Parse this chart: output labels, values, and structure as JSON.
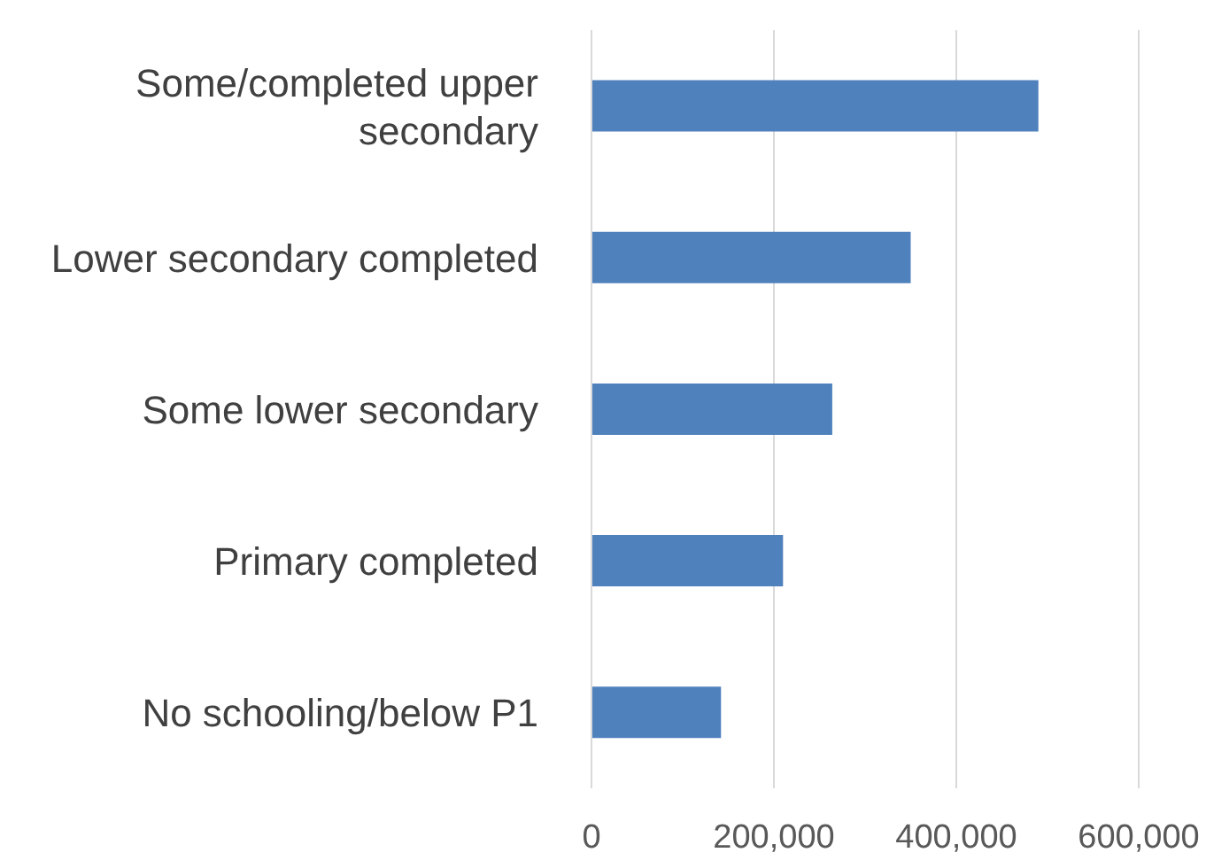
{
  "chart_data": {
    "type": "bar",
    "orientation": "horizontal",
    "categories": [
      "Some/completed upper secondary",
      "Lower secondary completed",
      "Some lower secondary",
      "Primary completed",
      "No schooling/below P1"
    ],
    "values": [
      490000,
      350000,
      264000,
      210000,
      142000
    ],
    "color": "#4f81bd",
    "xlim": [
      0,
      600000
    ],
    "xticks": [
      {
        "value": 0,
        "label": "0"
      },
      {
        "value": 200000,
        "label": "200,000"
      },
      {
        "value": 400000,
        "label": "400,000"
      },
      {
        "value": 600000,
        "label": "600,000"
      }
    ],
    "grid": "x",
    "legend": false
  }
}
